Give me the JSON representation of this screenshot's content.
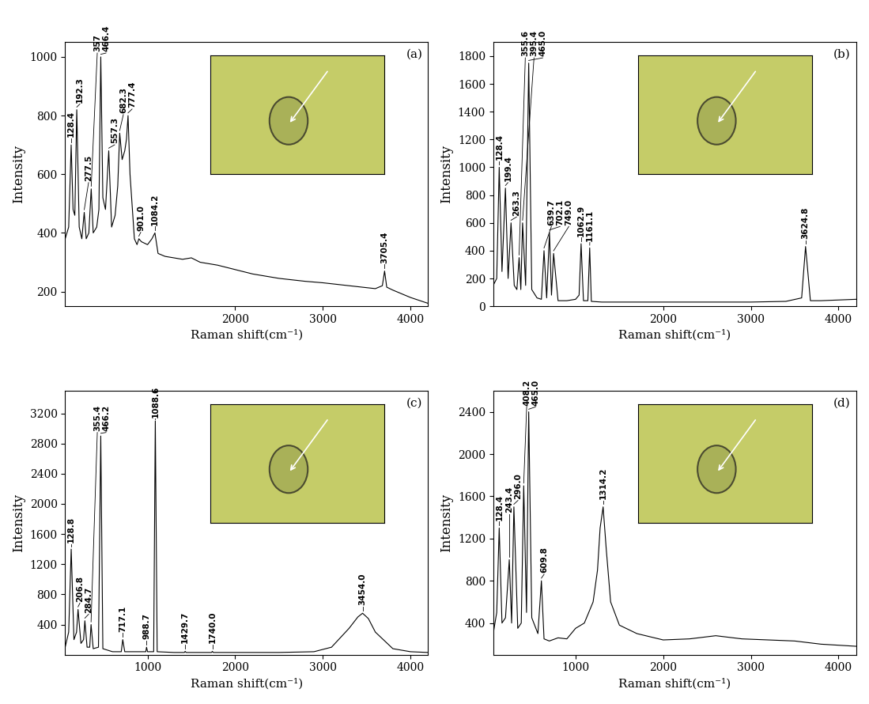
{
  "chart_data": [
    {
      "type": "line",
      "title": "(a)",
      "x_label": "Raman shift(cm⁻¹)",
      "y_label": "Intensity",
      "color": "#000000",
      "grid": false,
      "xlim": [
        60,
        4200
      ],
      "xticks": [
        2000,
        3000,
        4000
      ],
      "ylim": [
        150,
        1050
      ],
      "yticks": [
        200,
        400,
        600,
        800,
        1000
      ],
      "x": [
        60,
        100,
        128.4,
        150,
        170,
        192.3,
        220,
        250,
        277.5,
        300,
        330,
        357,
        380,
        420,
        445,
        466.4,
        490,
        520,
        557.3,
        590,
        630,
        660,
        682.3,
        710,
        740,
        760,
        777.4,
        800,
        850,
        880,
        901.0,
        930,
        1000,
        1050,
        1084.2,
        1120,
        1200,
        1400,
        1500,
        1600,
        1800,
        2000,
        2200,
        2500,
        2800,
        3000,
        3300,
        3600,
        3680,
        3705.4,
        3730,
        3800,
        4000,
        4200
      ],
      "values": [
        380,
        420,
        700,
        480,
        460,
        820,
        420,
        380,
        470,
        380,
        400,
        550,
        400,
        420,
        480,
        1000,
        520,
        480,
        680,
        420,
        460,
        560,
        740,
        650,
        680,
        720,
        800,
        600,
        380,
        360,
        380,
        370,
        360,
        380,
        400,
        330,
        320,
        310,
        315,
        300,
        290,
        275,
        260,
        245,
        235,
        230,
        220,
        210,
        220,
        270,
        215,
        205,
        180,
        160
      ],
      "annotations": [
        128.4,
        192.3,
        277.5,
        357,
        466.4,
        557.3,
        682.3,
        777.4,
        901.0,
        1084.2,
        3705.4
      ]
    },
    {
      "type": "line",
      "title": "(b)",
      "x_label": "Raman shift(cm⁻¹)",
      "y_label": "Intensity",
      "color": "#000000",
      "grid": false,
      "xlim": [
        60,
        4200
      ],
      "xticks": [
        2000,
        3000,
        4000
      ],
      "ylim": [
        0,
        1900
      ],
      "yticks": [
        0,
        200,
        400,
        600,
        800,
        1000,
        1200,
        1400,
        1600,
        1800
      ],
      "x": [
        60,
        100,
        128.4,
        160,
        199.4,
        230,
        263.3,
        300,
        330,
        355.6,
        375,
        395.4,
        430,
        465.0,
        500,
        560,
        610,
        639.7,
        670,
        702.1,
        725,
        749.0,
        800,
        900,
        1000,
        1040,
        1062.9,
        1090,
        1140,
        1161.1,
        1180,
        1300,
        1600,
        2000,
        2500,
        3000,
        3400,
        3580,
        3624.8,
        3680,
        3800,
        4000,
        4200
      ],
      "values": [
        150,
        200,
        1000,
        250,
        850,
        200,
        600,
        150,
        120,
        350,
        120,
        600,
        150,
        1750,
        120,
        60,
        50,
        400,
        60,
        530,
        80,
        380,
        40,
        40,
        50,
        80,
        450,
        40,
        40,
        420,
        35,
        30,
        30,
        30,
        30,
        30,
        35,
        60,
        430,
        40,
        40,
        45,
        50
      ],
      "annotations": [
        128.4,
        199.4,
        263.3,
        355.6,
        395.4,
        465.0,
        639.7,
        702.1,
        749.0,
        1062.9,
        1161.1,
        3624.8
      ]
    },
    {
      "type": "line",
      "title": "(c)",
      "x_label": "Raman shift(cm⁻¹)",
      "y_label": "Intensity",
      "color": "#000000",
      "grid": false,
      "xlim": [
        60,
        4200
      ],
      "xticks": [
        1000,
        2000,
        3000,
        4000
      ],
      "ylim": [
        0,
        3500
      ],
      "yticks": [
        400,
        800,
        1200,
        1600,
        2000,
        2400,
        2800,
        3200
      ],
      "x": [
        60,
        100,
        128.8,
        160,
        190,
        206.8,
        240,
        270,
        284.7,
        310,
        340,
        355.4,
        380,
        440,
        466.2,
        490,
        600,
        700,
        717.1,
        740,
        900,
        980,
        988.7,
        1000,
        1070,
        1088.6,
        1110,
        1300,
        1420,
        1429.7,
        1440,
        1730,
        1740.0,
        1750,
        2000,
        2500,
        2900,
        3100,
        3300,
        3400,
        3454.0,
        3520,
        3600,
        3800,
        4000,
        4200
      ],
      "values": [
        100,
        300,
        1400,
        200,
        300,
        600,
        150,
        200,
        450,
        100,
        100,
        400,
        80,
        100,
        2900,
        80,
        40,
        40,
        200,
        40,
        40,
        40,
        100,
        40,
        40,
        3100,
        40,
        30,
        30,
        45,
        30,
        30,
        45,
        30,
        30,
        30,
        40,
        100,
        350,
        500,
        550,
        480,
        300,
        80,
        40,
        30
      ],
      "annotations": [
        128.8,
        206.8,
        284.7,
        355.4,
        466.2,
        717.1,
        988.7,
        1088.6,
        1429.7,
        1740.0,
        3454.0
      ]
    },
    {
      "type": "line",
      "title": "(d)",
      "x_label": "Raman shift(cm⁻¹)",
      "y_label": "Intensity",
      "color": "#000000",
      "grid": false,
      "xlim": [
        60,
        4200
      ],
      "xticks": [
        1000,
        2000,
        3000,
        4000
      ],
      "ylim": [
        100,
        2600
      ],
      "yticks": [
        400,
        800,
        1200,
        1600,
        2000,
        2400
      ],
      "x": [
        60,
        100,
        128.4,
        160,
        200,
        243.4,
        270,
        296.0,
        340,
        380,
        408.2,
        440,
        465.0,
        500,
        570,
        609.8,
        640,
        700,
        800,
        900,
        1000,
        1100,
        1200,
        1250,
        1280,
        1314.2,
        1350,
        1400,
        1500,
        1700,
        2000,
        2300,
        2600,
        2900,
        3200,
        3500,
        3800,
        4200
      ],
      "values": [
        300,
        500,
        1300,
        400,
        450,
        1000,
        400,
        1500,
        350,
        400,
        1700,
        500,
        2400,
        450,
        300,
        800,
        250,
        230,
        260,
        250,
        350,
        400,
        600,
        900,
        1300,
        1500,
        1100,
        600,
        380,
        300,
        240,
        250,
        280,
        250,
        240,
        230,
        200,
        180
      ],
      "annotations": [
        128.4,
        243.4,
        296.0,
        408.2,
        465.0,
        609.8,
        1314.2
      ]
    }
  ]
}
